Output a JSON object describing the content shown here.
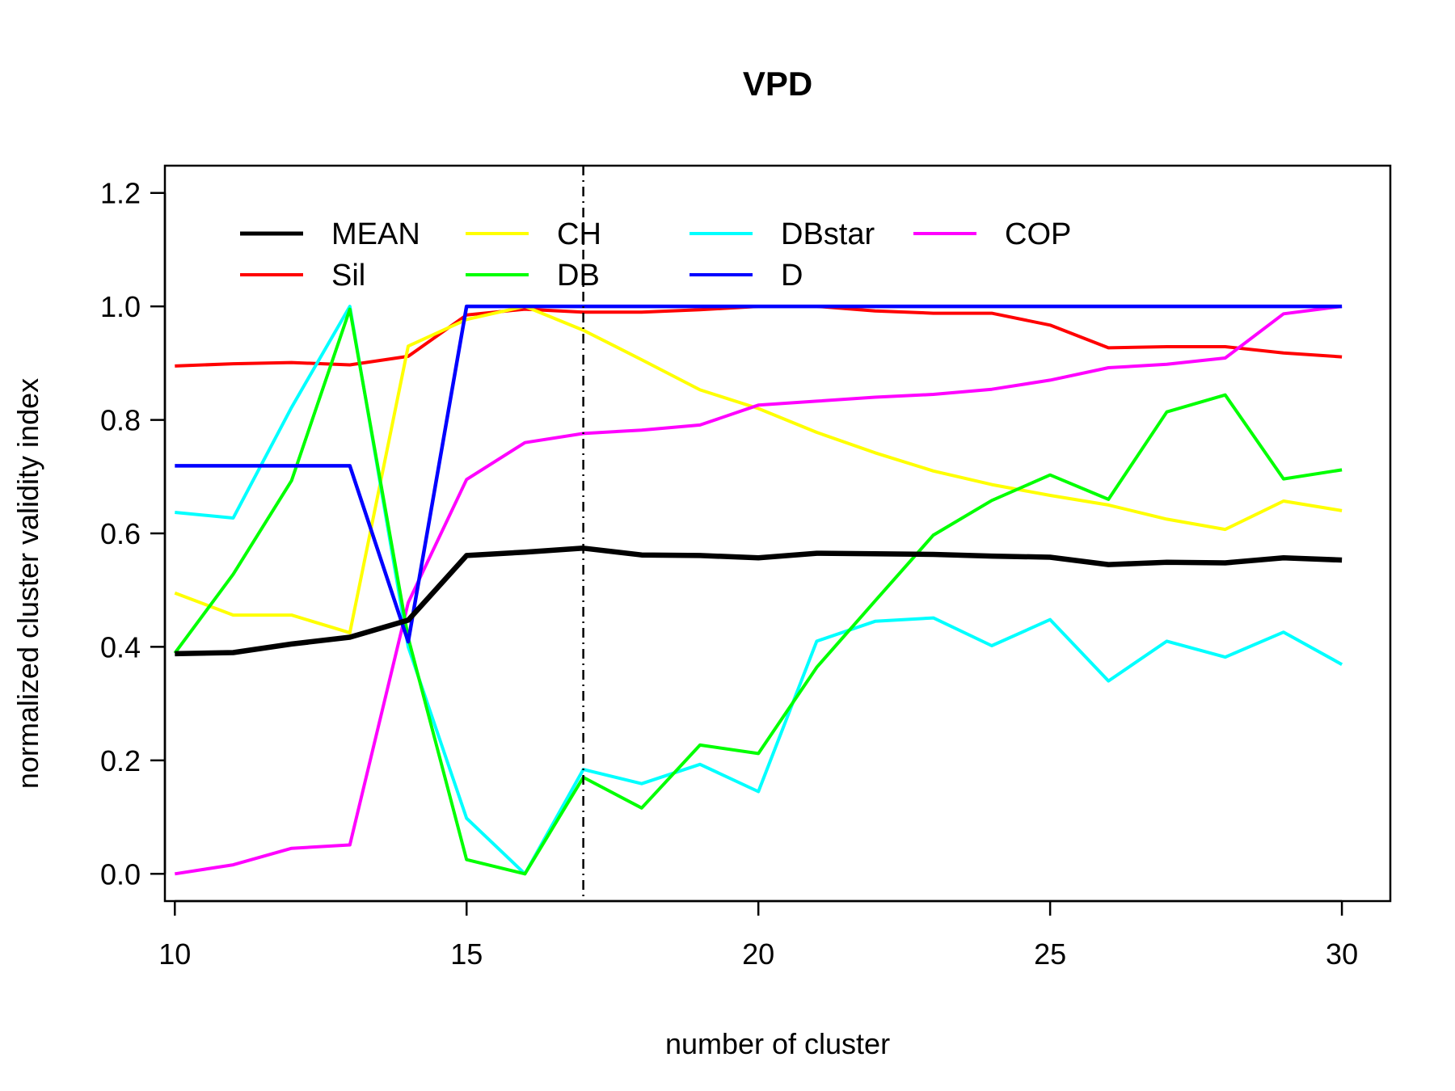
{
  "chart_data": {
    "type": "line",
    "title": "VPD",
    "xlabel": "number of cluster",
    "ylabel": "normalized cluster validity index",
    "xlim": [
      9.83,
      30.83
    ],
    "ylim": [
      -0.048,
      1.248
    ],
    "xticks": [
      10,
      15,
      20,
      25,
      30
    ],
    "yticks": [
      0.0,
      0.2,
      0.4,
      0.6,
      0.8,
      1.0,
      1.2
    ],
    "xtick_labels": [
      "10",
      "15",
      "20",
      "25",
      "30"
    ],
    "ytick_labels": [
      "0.0",
      "0.2",
      "0.4",
      "0.6",
      "0.8",
      "1.0",
      "1.2"
    ],
    "grid": false,
    "legend_position": "top-left",
    "vline": {
      "x": 17,
      "style": "dot-dash",
      "color": "#000000"
    },
    "x": [
      10,
      11,
      12,
      13,
      14,
      15,
      16,
      17,
      18,
      19,
      20,
      21,
      22,
      23,
      24,
      25,
      26,
      27,
      28,
      29,
      30
    ],
    "series": [
      {
        "name": "Sil",
        "color": "#FF0000",
        "width": 4,
        "values": [
          0.895,
          0.899,
          0.901,
          0.897,
          0.912,
          0.985,
          0.995,
          0.99,
          0.99,
          0.994,
          1.0,
          1.0,
          0.992,
          0.988,
          0.988,
          0.967,
          0.927,
          0.929,
          0.929,
          0.918,
          0.911
        ]
      },
      {
        "name": "CH",
        "color": "#FFFF00",
        "width": 4,
        "values": [
          0.495,
          0.456,
          0.456,
          0.425,
          0.93,
          0.977,
          1.0,
          0.958,
          0.906,
          0.853,
          0.82,
          0.778,
          0.742,
          0.71,
          0.686,
          0.667,
          0.65,
          0.625,
          0.607,
          0.657,
          0.64
        ]
      },
      {
        "name": "DBstar",
        "color": "#00FFFF",
        "width": 4,
        "values": [
          0.637,
          0.627,
          0.822,
          1.0,
          0.4,
          0.098,
          0.0,
          0.184,
          0.159,
          0.193,
          0.145,
          0.41,
          0.445,
          0.451,
          0.402,
          0.448,
          0.34,
          0.41,
          0.382,
          0.426,
          0.369
        ]
      },
      {
        "name": "COP",
        "color": "#FF00FF",
        "width": 4,
        "values": [
          0.0,
          0.016,
          0.045,
          0.051,
          0.478,
          0.695,
          0.76,
          0.776,
          0.782,
          0.791,
          0.826,
          0.833,
          0.84,
          0.845,
          0.854,
          0.87,
          0.892,
          0.898,
          0.909,
          0.987,
          1.0
        ]
      },
      {
        "name": "DB",
        "color": "#00FF00",
        "width": 4,
        "values": [
          0.389,
          0.528,
          0.693,
          0.995,
          0.416,
          0.025,
          0.0,
          0.17,
          0.116,
          0.227,
          0.212,
          0.364,
          0.481,
          0.597,
          0.658,
          0.703,
          0.66,
          0.814,
          0.844,
          0.696,
          0.712
        ]
      },
      {
        "name": "D",
        "color": "#0000FF",
        "width": 4.5,
        "values": [
          0.719,
          0.719,
          0.719,
          0.719,
          0.409,
          1.0,
          1.0,
          1.0,
          1.0,
          1.0,
          1.0,
          1.0,
          1.0,
          1.0,
          1.0,
          1.0,
          1.0,
          1.0,
          1.0,
          1.0,
          1.0
        ]
      },
      {
        "name": "MEAN",
        "color": "#000000",
        "width": 6.5,
        "values": [
          0.388,
          0.39,
          0.405,
          0.417,
          0.447,
          0.561,
          0.567,
          0.574,
          0.562,
          0.561,
          0.557,
          0.565,
          0.564,
          0.563,
          0.56,
          0.558,
          0.545,
          0.549,
          0.548,
          0.557,
          0.553
        ]
      }
    ],
    "legend": [
      {
        "label": "MEAN",
        "color": "#000000",
        "width": 5
      },
      {
        "label": "Sil",
        "color": "#FF0000",
        "width": 4
      },
      {
        "label": "CH",
        "color": "#FFFF00",
        "width": 4
      },
      {
        "label": "DB",
        "color": "#00FF00",
        "width": 4
      },
      {
        "label": "DBstar",
        "color": "#00FFFF",
        "width": 4
      },
      {
        "label": "D",
        "color": "#0000FF",
        "width": 4
      },
      {
        "label": "COP",
        "color": "#FF00FF",
        "width": 4
      }
    ]
  }
}
